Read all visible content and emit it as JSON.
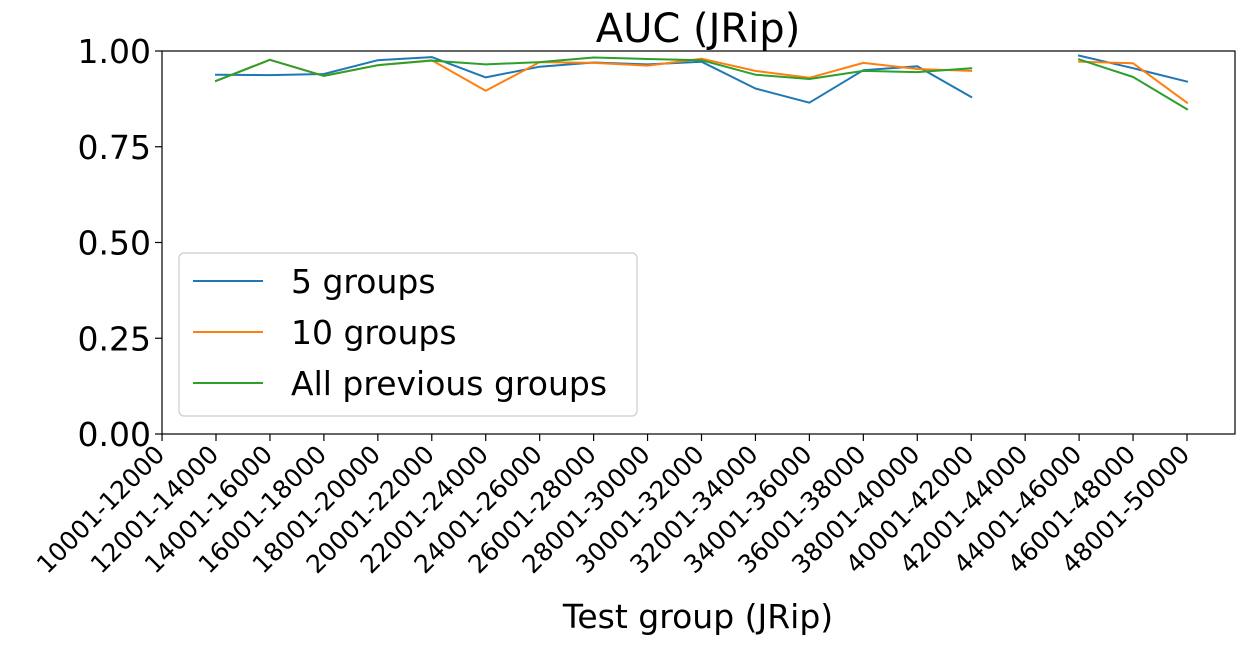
{
  "chart_data": {
    "type": "line",
    "title": "AUC (JRip)",
    "xlabel": "Test group (JRip)",
    "ylabel": "",
    "ylim": [
      0.0,
      1.0
    ],
    "yticks": [
      "0.00",
      "0.25",
      "0.50",
      "0.75",
      "1.00"
    ],
    "grid": false,
    "legend_position": "lower-left",
    "categories": [
      "10001-12000",
      "12001-14000",
      "14001-16000",
      "16001-18000",
      "18001-20000",
      "20001-22000",
      "22001-24000",
      "24001-26000",
      "26001-28000",
      "28001-30000",
      "30001-32000",
      "32001-34000",
      "34001-36000",
      "36001-38000",
      "38001-40000",
      "40001-42000",
      "42001-44000",
      "44001-46000",
      "46001-48000",
      "48001-50000"
    ],
    "series": [
      {
        "name": "5 groups",
        "color": "#1f77b4",
        "values": [
          null,
          0.938,
          0.937,
          0.94,
          0.976,
          0.984,
          0.931,
          0.959,
          0.97,
          0.965,
          0.972,
          0.902,
          0.865,
          0.95,
          0.96,
          0.88,
          null,
          0.988,
          0.955,
          0.92
        ]
      },
      {
        "name": "10 groups",
        "color": "#ff7f0e",
        "values": [
          null,
          0.922,
          0.977,
          0.935,
          0.963,
          0.976,
          0.896,
          0.971,
          0.969,
          0.962,
          0.98,
          0.948,
          0.93,
          0.969,
          0.953,
          0.948,
          null,
          0.972,
          0.968,
          0.865
        ]
      },
      {
        "name": "All previous groups",
        "color": "#2ca02c",
        "values": [
          null,
          0.922,
          0.977,
          0.935,
          0.963,
          0.975,
          0.965,
          0.971,
          0.983,
          0.979,
          0.976,
          0.938,
          0.927,
          0.948,
          0.945,
          0.955,
          null,
          0.978,
          0.932,
          0.848
        ]
      }
    ]
  }
}
